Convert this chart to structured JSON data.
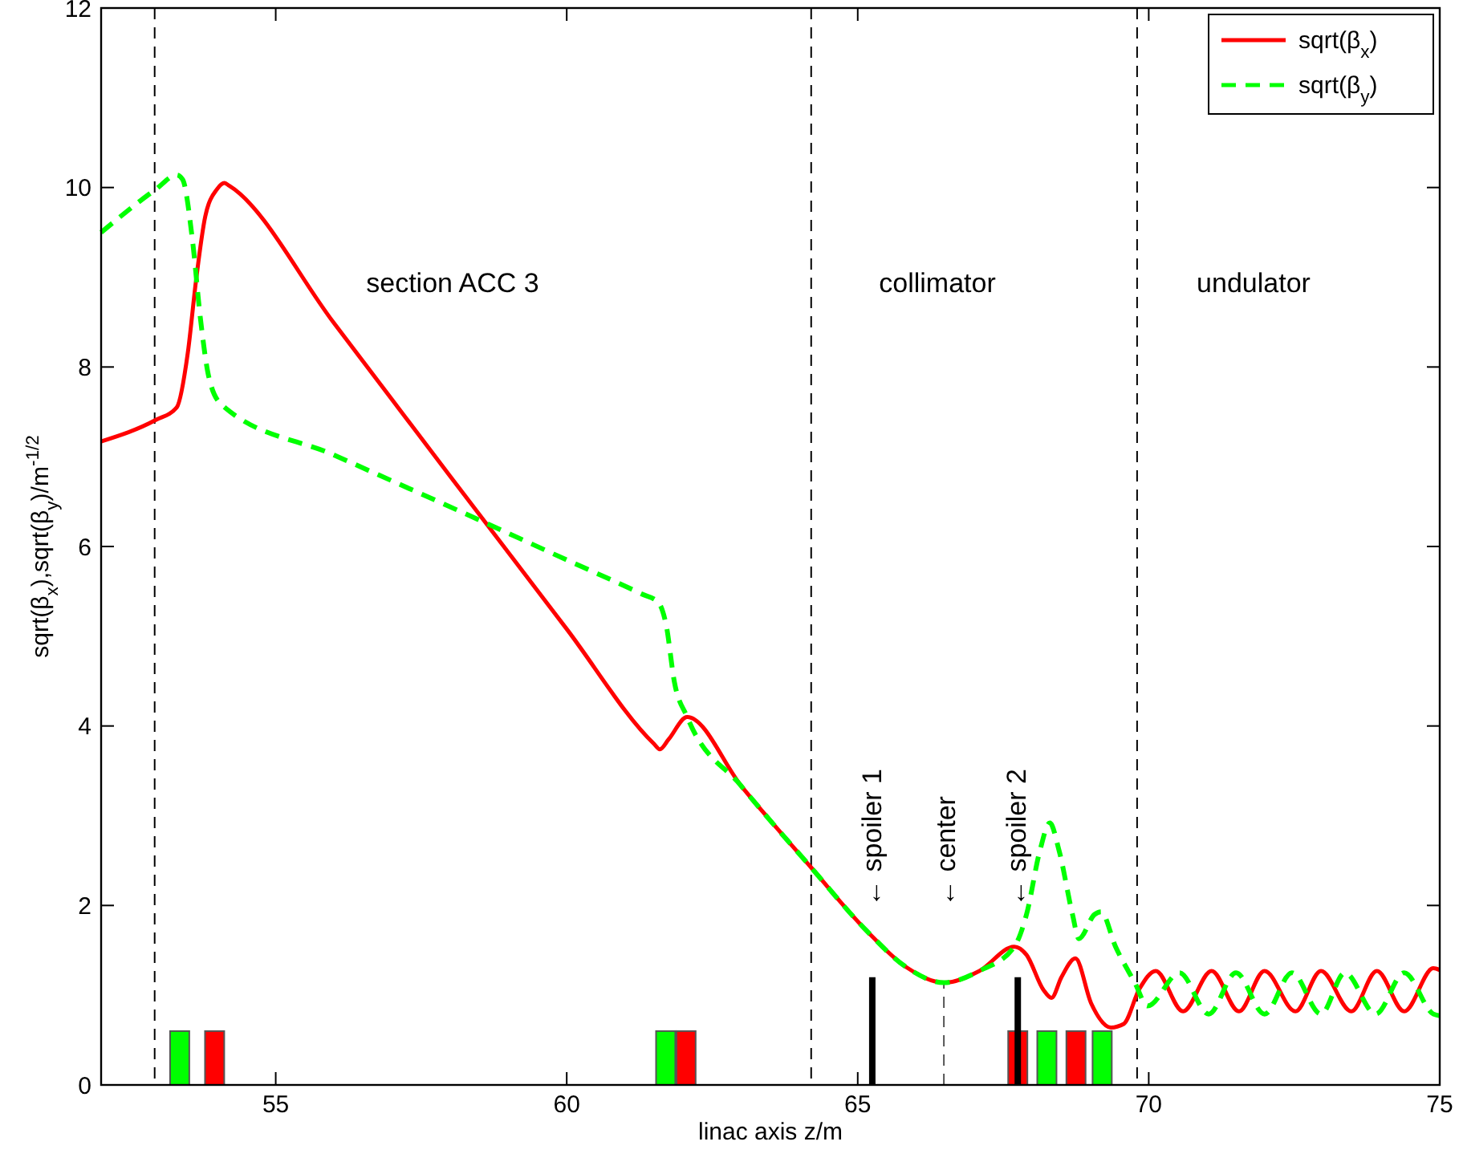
{
  "chart_data": {
    "type": "line",
    "xlabel": "linac axis z/m",
    "ylabel": "sqrt(β$_{x}$),sqrt(β$_{y}$)/m$^{-1/2}$",
    "xlim": [
      52,
      75
    ],
    "ylim": [
      0,
      12
    ],
    "xticks": [
      55,
      60,
      65,
      70,
      75
    ],
    "yticks": [
      0,
      2,
      4,
      6,
      8,
      10,
      12
    ],
    "grid": false,
    "legend": "top right",
    "series": [
      {
        "type": "bar",
        "color": "#00ff00",
        "x": [
          53.35,
          61.7,
          68.25,
          69.2
        ],
        "values": [
          0.6,
          0.6,
          0.6,
          0.6
        ]
      },
      {
        "type": "bar",
        "color": "#ff0000",
        "x": [
          53.95,
          62.05,
          67.75,
          68.75
        ],
        "values": [
          0.6,
          0.6,
          0.6,
          0.6
        ]
      },
      {
        "type": "line",
        "color": "#000000",
        "line_style": "solid",
        "x": [
          65.25,
          65.25
        ],
        "values": [
          0,
          1.2
        ]
      },
      {
        "type": "line",
        "color": "#000000",
        "line_style": "solid",
        "x": [
          67.75,
          67.75
        ],
        "values": [
          0,
          1.2
        ]
      },
      {
        "type": "line",
        "color": "#555555",
        "line_style": "dashed",
        "x": [
          66.48,
          66.48
        ],
        "values": [
          0,
          1.14
        ]
      },
      {
        "name": "sqrt(β$_{x}$)",
        "color": "#ff0000",
        "line_style": "solid",
        "x": [
          52,
          52.94,
          53.3,
          53.49,
          53.63,
          53.79,
          53.99,
          54.12,
          54.2,
          56,
          58,
          60,
          61.5,
          61.6,
          61.75,
          62.07,
          63,
          64.19,
          65.15,
          65.84,
          66.48,
          67.09,
          67.69,
          67.9,
          68.19,
          68.33,
          68.5,
          68.74,
          69.01,
          69.35,
          69.57,
          69.84,
          70.12,
          70.59,
          71.08,
          71.55,
          71.99,
          72.52,
          72.96,
          73.48,
          73.92,
          74.39,
          74.89,
          75
        ],
        "values": [
          7.17,
          7.41,
          7.55,
          8.16,
          8.96,
          9.68,
          9.98,
          10.05,
          10.02,
          8.49,
          6.78,
          5.08,
          3.8,
          3.74,
          3.85,
          4.1,
          3.33,
          2.43,
          1.72,
          1.31,
          1.14,
          1.27,
          1.54,
          1.45,
          1.06,
          0.97,
          1.2,
          1.41,
          0.91,
          0.64,
          0.68,
          1.07,
          1.27,
          0.82,
          1.27,
          0.82,
          1.27,
          0.82,
          1.27,
          0.82,
          1.27,
          0.82,
          1.3,
          1.28
        ]
      },
      {
        "name": "sqrt(β$_{y}$)",
        "color": "#00ff00",
        "line_style": "dashed",
        "x": [
          52,
          52.94,
          53.3,
          53.4,
          53.57,
          53.71,
          53.85,
          54.07,
          56,
          58.48,
          60,
          61.29,
          61.57,
          61.71,
          61.85,
          62.07,
          63,
          64.19,
          65.15,
          65.84,
          66.48,
          67.09,
          67.69,
          67.9,
          68.13,
          68.3,
          68.46,
          68.69,
          68.8,
          69.07,
          69.18,
          69.43,
          69.76,
          69.98,
          70.53,
          71.03,
          71.5,
          71.99,
          72.46,
          72.96,
          73.37,
          73.9,
          74.39,
          74.89,
          75
        ],
        "values": [
          9.5,
          9.98,
          10.14,
          10.09,
          9.41,
          8.52,
          7.89,
          7.58,
          7.02,
          6.3,
          5.85,
          5.47,
          5.38,
          5.12,
          4.49,
          4.1,
          3.33,
          2.43,
          1.72,
          1.31,
          1.14,
          1.27,
          1.54,
          1.9,
          2.61,
          2.92,
          2.61,
          1.9,
          1.63,
          1.9,
          1.93,
          1.54,
          1.14,
          0.88,
          1.25,
          0.79,
          1.25,
          0.79,
          1.25,
          0.79,
          1.25,
          0.79,
          1.25,
          0.79,
          0.77
        ]
      }
    ],
    "ref_lines": [
      {
        "axis": "x",
        "value": 52.92,
        "color": "#000000",
        "line_style": "dashed"
      },
      {
        "axis": "x",
        "value": 64.2,
        "color": "#000000",
        "line_style": "dashed"
      },
      {
        "axis": "x",
        "value": 69.8,
        "color": "#000000",
        "line_style": "dashed"
      }
    ],
    "annotations": [
      "section ACC 3",
      "collimator",
      "undulator",
      "← spoiler 1",
      "← center",
      "← spoiler 2"
    ]
  }
}
